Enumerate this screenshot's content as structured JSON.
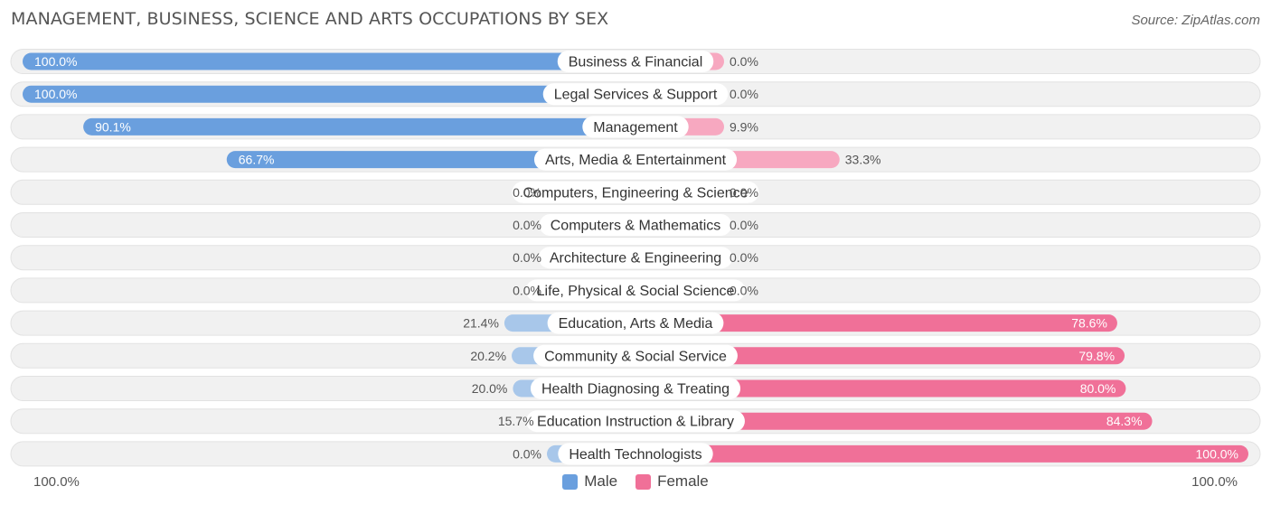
{
  "header": {
    "title": "MANAGEMENT, BUSINESS, SCIENCE AND ARTS OCCUPATIONS BY SEX",
    "source": "Source: ZipAtlas.com"
  },
  "axis": {
    "left_label": "100.0%",
    "right_label": "100.0%"
  },
  "legend": {
    "male_label": "Male",
    "female_label": "Female",
    "male_color": "#6a9fde",
    "female_color": "#f07098"
  },
  "chart_data": {
    "type": "bar",
    "orientation": "horizontal-diverging",
    "categories": [
      "Business & Financial",
      "Legal Services & Support",
      "Management",
      "Arts, Media & Entertainment",
      "Computers, Engineering & Science",
      "Computers & Mathematics",
      "Architecture & Engineering",
      "Life, Physical & Social Science",
      "Education, Arts & Media",
      "Community & Social Service",
      "Health Diagnosing & Treating",
      "Education Instruction & Library",
      "Health Technologists"
    ],
    "series": [
      {
        "name": "Male",
        "values": [
          100.0,
          100.0,
          90.1,
          66.7,
          0.0,
          0.0,
          0.0,
          0.0,
          21.4,
          20.2,
          20.0,
          15.7,
          0.0
        ],
        "labels": [
          "100.0%",
          "100.0%",
          "90.1%",
          "66.7%",
          "0.0%",
          "0.0%",
          "0.0%",
          "0.0%",
          "21.4%",
          "20.2%",
          "20.0%",
          "15.7%",
          "0.0%"
        ]
      },
      {
        "name": "Female",
        "values": [
          0.0,
          0.0,
          9.9,
          33.3,
          0.0,
          0.0,
          0.0,
          0.0,
          78.6,
          79.8,
          80.0,
          84.3,
          100.0
        ],
        "labels": [
          "0.0%",
          "0.0%",
          "9.9%",
          "33.3%",
          "0.0%",
          "0.0%",
          "0.0%",
          "0.0%",
          "78.6%",
          "79.8%",
          "80.0%",
          "84.3%",
          "100.0%"
        ]
      }
    ],
    "xlim": [
      -100,
      100
    ],
    "colors": {
      "male_strong": "#6a9fde",
      "male_light": "#a8c7ea",
      "female_strong": "#f07098",
      "female_light": "#f7a8c0",
      "track": "#f1f1f1"
    },
    "legend_position": "bottom-center"
  }
}
